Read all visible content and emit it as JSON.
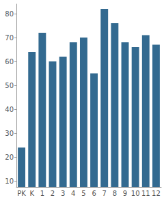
{
  "chart_data": {
    "type": "bar",
    "categories": [
      "PK",
      "K",
      "1",
      "2",
      "3",
      "4",
      "5",
      "6",
      "7",
      "8",
      "9",
      "10",
      "11",
      "12"
    ],
    "values": [
      24,
      64,
      72,
      60,
      62,
      68,
      70,
      55,
      82,
      76,
      68,
      66,
      71,
      67
    ],
    "color": "#336a90",
    "ylim": [
      7.5,
      84
    ],
    "yticks": [
      10,
      20,
      30,
      40,
      50,
      60,
      70,
      80
    ],
    "grid": false
  }
}
